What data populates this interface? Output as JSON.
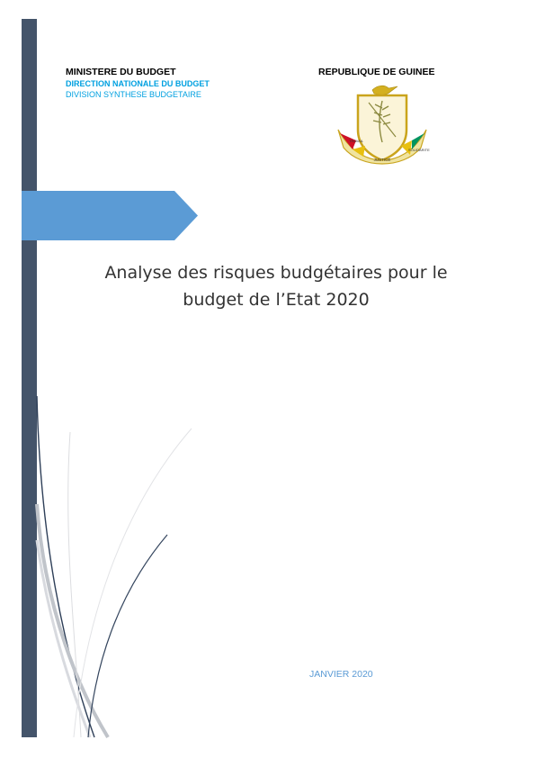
{
  "header": {
    "ministry": "MINISTERE DU BUDGET",
    "direction": "DIRECTION NATIONALE DU BUDGET",
    "division": "DIVISION SYNTHESE BUDGETAIRE",
    "republic": "REPUBLIQUE DE GUINEE"
  },
  "emblem": {
    "icon": "guinea-coat-of-arms-icon",
    "motto": "TRAVAIL JUSTICE SOLIDARITE"
  },
  "title": {
    "line1": "Analyse des risques budgétaires pour le",
    "line2": "budget de l’Etat 2020"
  },
  "date": "JANVIER 2020",
  "colors": {
    "sidebar": "#44546a",
    "arrow": "#5b9bd5",
    "accent_text": "#00a0e0"
  }
}
